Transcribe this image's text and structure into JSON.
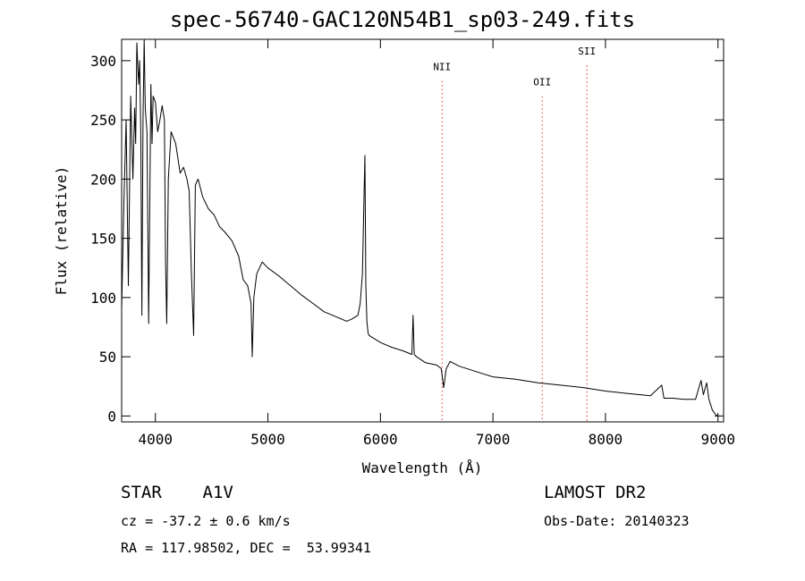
{
  "chart_data": {
    "type": "line",
    "title": "spec-56740-GAC120N54B1_sp03-249.fits",
    "xlabel": "Wavelength (Å)",
    "ylabel": "Flux (relative)",
    "xlim": [
      3700,
      9050
    ],
    "ylim": [
      -5,
      318
    ],
    "x_ticks": [
      4000,
      5000,
      6000,
      7000,
      8000,
      9000
    ],
    "y_ticks": [
      0,
      50,
      100,
      150,
      200,
      250,
      300
    ],
    "grid": false,
    "line_color": "#000000",
    "series": [
      {
        "x": [
          3700,
          3720,
          3740,
          3760,
          3780,
          3800,
          3815,
          3825,
          3835,
          3850,
          3860,
          3870,
          3880,
          3890,
          3900,
          3910,
          3925,
          3940,
          3960,
          3970,
          3980,
          4000,
          4020,
          4040,
          4060,
          4080,
          4090,
          4101,
          4115,
          4140,
          4180,
          4220,
          4250,
          4280,
          4300,
          4320,
          4340,
          4355,
          4380,
          4420,
          4470,
          4520,
          4570,
          4620,
          4680,
          4740,
          4780,
          4820,
          4850,
          4861,
          4875,
          4900,
          4950,
          5000,
          5100,
          5200,
          5300,
          5400,
          5500,
          5600,
          5700,
          5750,
          5800,
          5820,
          5840,
          5855,
          5862,
          5870,
          5880,
          5890,
          5900,
          5950,
          6000,
          6100,
          6200,
          6280,
          6290,
          6300,
          6320,
          6400,
          6500,
          6540,
          6563,
          6585,
          6620,
          6700,
          6800,
          6900,
          7000,
          7200,
          7400,
          7600,
          7800,
          8000,
          8200,
          8400,
          8500,
          8520,
          8600,
          8700,
          8800,
          8850,
          8870,
          8900,
          8920,
          8950,
          8980,
          9000
        ],
        "y": [
          90,
          180,
          250,
          110,
          270,
          200,
          260,
          230,
          315,
          280,
          300,
          240,
          85,
          250,
          318,
          260,
          240,
          78,
          280,
          230,
          270,
          265,
          240,
          250,
          262,
          250,
          130,
          78,
          200,
          240,
          230,
          205,
          210,
          200,
          190,
          120,
          68,
          195,
          200,
          185,
          175,
          170,
          160,
          155,
          148,
          135,
          115,
          110,
          95,
          50,
          100,
          120,
          130,
          125,
          118,
          110,
          102,
          95,
          88,
          84,
          80,
          82,
          85,
          95,
          120,
          190,
          220,
          110,
          80,
          70,
          68,
          65,
          62,
          58,
          55,
          52,
          85,
          52,
          50,
          45,
          43,
          40,
          24,
          40,
          46,
          42,
          39,
          36,
          33,
          31,
          28,
          26,
          24,
          21,
          19,
          17,
          26,
          15,
          15,
          14,
          14,
          30,
          18,
          28,
          14,
          5,
          1,
          0
        ]
      }
    ],
    "annotations": [
      {
        "label": "NII",
        "x": 6548,
        "label_y": 292
      },
      {
        "label": "OII",
        "x": 7438,
        "label_y": 279
      },
      {
        "label": "SII",
        "x": 7835,
        "label_y": 305
      }
    ]
  },
  "info": {
    "object": "STAR    A1V",
    "velocity": "cz = -37.2 ± 0.6 km/s",
    "coords": "RA = 117.98502, DEC =  53.99341",
    "survey": "LAMOST DR2",
    "obs_date": "Obs-Date: 20140323"
  }
}
